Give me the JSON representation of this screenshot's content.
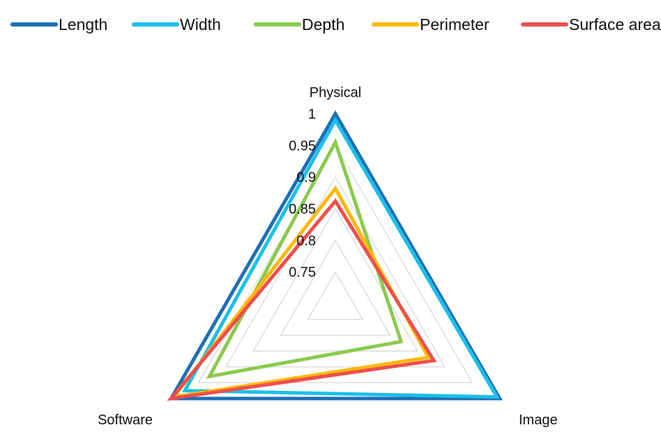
{
  "chart_data": {
    "type": "radar",
    "axes": [
      "Physical",
      "Image",
      "Software"
    ],
    "ticks": [
      "0.75",
      "0.8",
      "0.85",
      "0.9",
      "0.95",
      "1"
    ],
    "range": [
      0.7,
      1.0
    ],
    "grid": true,
    "legend_position": "top",
    "series": [
      {
        "name": "Length",
        "color": "#1F6FB4",
        "values": [
          1.0,
          1.0,
          1.0
        ]
      },
      {
        "name": "Width",
        "color": "#1BC0EA",
        "values": [
          0.99,
          0.995,
          0.975
        ]
      },
      {
        "name": "Depth",
        "color": "#8BC94E",
        "values": [
          0.955,
          0.82,
          0.93
        ]
      },
      {
        "name": "Perimeter",
        "color": "#FFB800",
        "values": [
          0.882,
          0.87,
          0.995
        ]
      },
      {
        "name": "Surface area",
        "color": "#EE4F4F",
        "values": [
          0.862,
          0.88,
          1.0
        ]
      }
    ]
  }
}
